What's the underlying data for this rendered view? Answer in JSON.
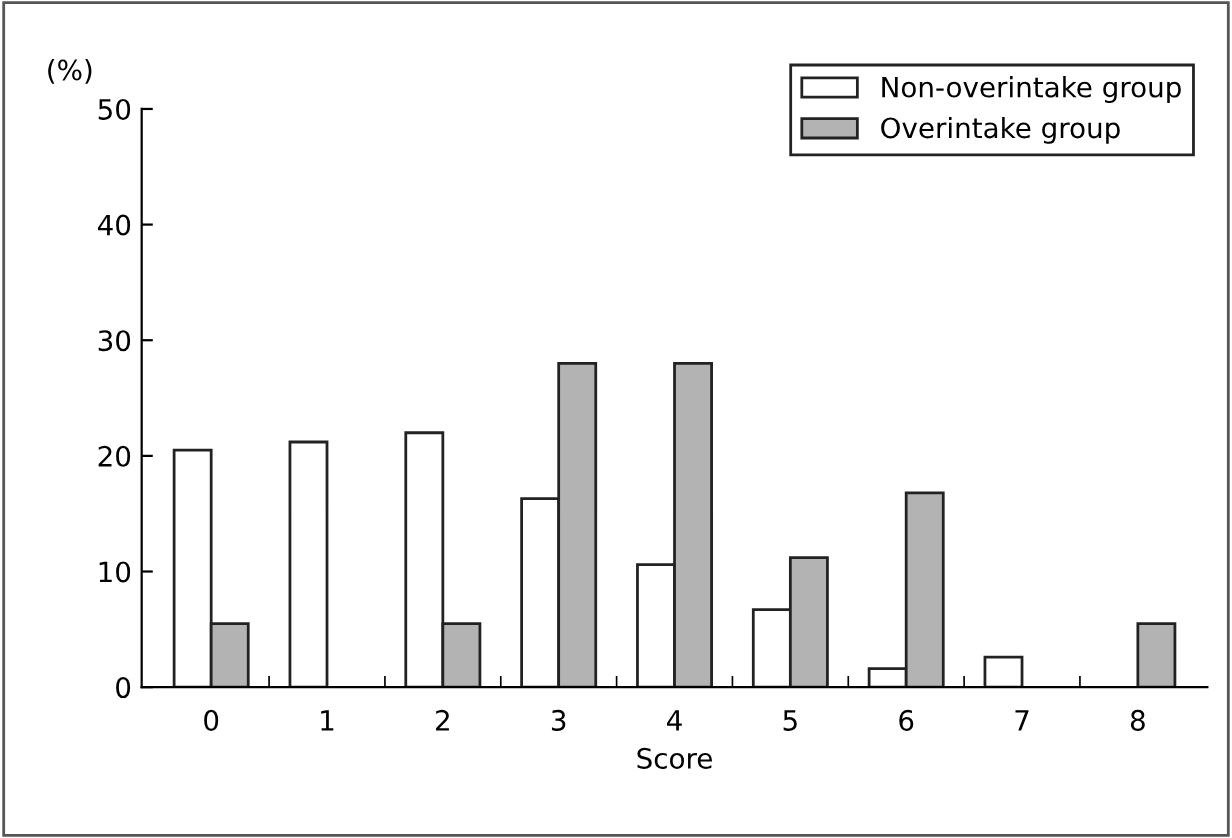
{
  "chart_data": {
    "type": "bar",
    "ylabel": "(%)",
    "xlabel": "Score",
    "categories": [
      "0",
      "1",
      "2",
      "3",
      "4",
      "5",
      "6",
      "7",
      "8"
    ],
    "series": [
      {
        "name": "Non-overintake group",
        "color": "#ffffff",
        "values": [
          20.5,
          21.2,
          22.0,
          16.3,
          10.6,
          6.7,
          1.6,
          2.6,
          null
        ]
      },
      {
        "name": "Overintake group",
        "color": "#b3b3b3",
        "values": [
          5.5,
          null,
          5.5,
          28.0,
          28.0,
          11.2,
          16.8,
          null,
          5.5
        ]
      }
    ],
    "ylim": [
      0,
      50
    ],
    "yticks": [
      0,
      10,
      20,
      30,
      40,
      50
    ],
    "grid": false,
    "legend": "top right"
  }
}
